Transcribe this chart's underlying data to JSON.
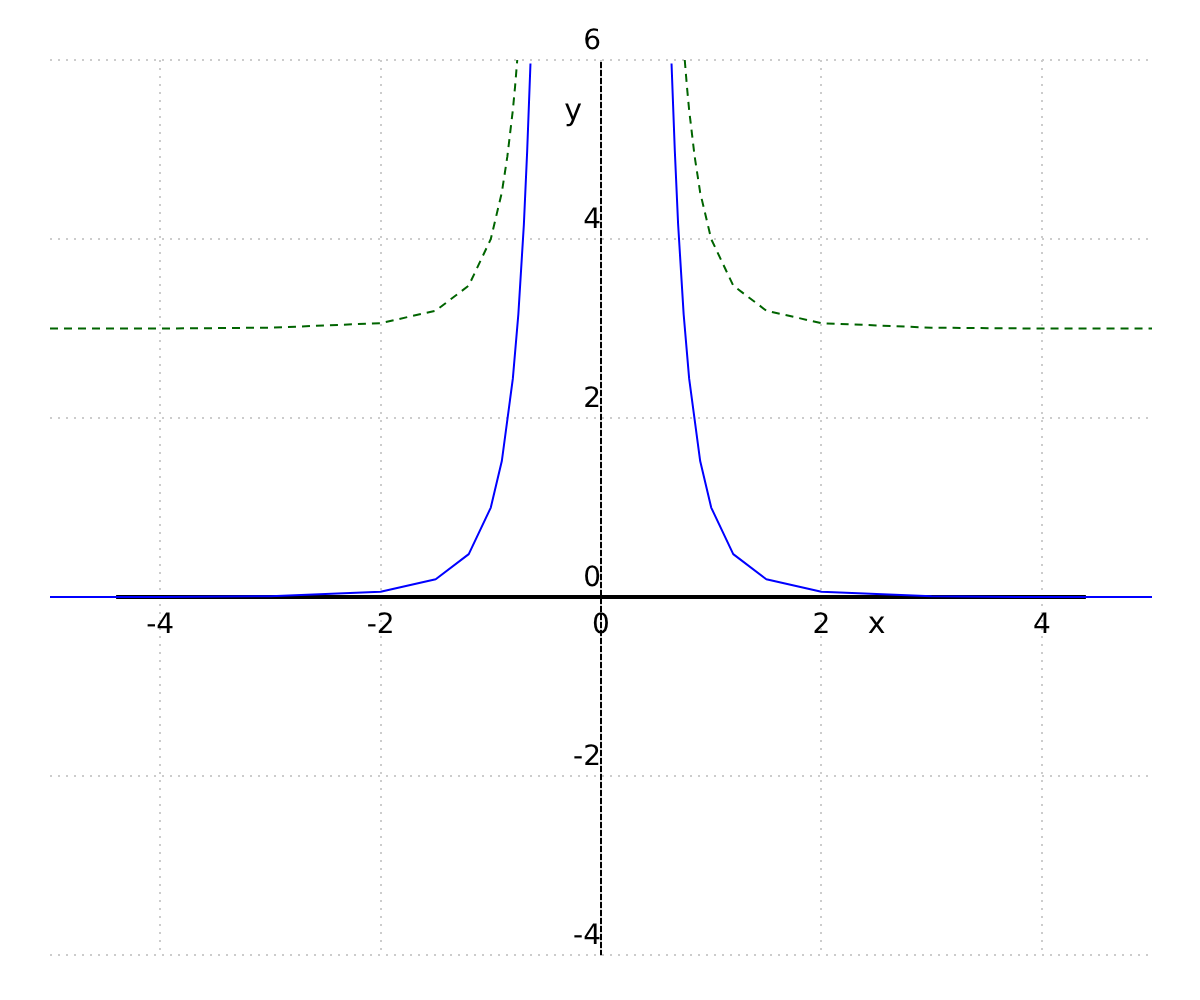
{
  "chart_data": {
    "type": "line",
    "xlabel": "x",
    "ylabel": "y",
    "xlim": [
      -5,
      5
    ],
    "ylim": [
      -4,
      6
    ],
    "xticks": [
      -4,
      -2,
      0,
      2,
      4
    ],
    "yticks": [
      -4,
      -2,
      0,
      2,
      4,
      6
    ],
    "grid": true,
    "legend": false,
    "series": [
      {
        "color": "#0000ff",
        "line_style": "solid",
        "x": [
          -5,
          -4,
          -3,
          -2,
          -1.5,
          -1.2,
          -1,
          -0.9,
          -0.8,
          -0.75,
          -0.7,
          -0.67,
          -0.64,
          0,
          0.64,
          0.67,
          0.7,
          0.75,
          0.8,
          0.9,
          1,
          1.2,
          1.5,
          2,
          3,
          4,
          5
        ],
        "values": [
          0,
          0,
          0.01,
          0.06,
          0.2,
          0.48,
          1,
          1.52,
          2.44,
          3.16,
          4.16,
          4.98,
          5.96,
          null,
          5.96,
          4.98,
          4.16,
          3.16,
          2.44,
          1.52,
          1,
          0.48,
          0.2,
          0.06,
          0.01,
          0,
          0
        ]
      },
      {
        "color": "#006400",
        "line_style": "dashed",
        "x": [
          -5,
          -4,
          -3,
          -2,
          -1.5,
          -1.2,
          -1,
          -0.9,
          -0.85,
          -0.8,
          -0.78,
          -0.76,
          0,
          0.76,
          0.78,
          0.8,
          0.85,
          0.9,
          1,
          1.2,
          1.5,
          2,
          3,
          4,
          5
        ],
        "values": [
          3,
          3,
          3.01,
          3.06,
          3.2,
          3.48,
          4,
          4.52,
          4.92,
          5.44,
          5.7,
          6,
          null,
          6,
          5.7,
          5.44,
          4.92,
          4.52,
          4,
          3.48,
          3.2,
          3.06,
          3.01,
          3,
          3
        ]
      },
      {
        "color": "#000000",
        "line_style": "solid",
        "x": [
          -4.4,
          4.4
        ],
        "values": [
          0,
          0
        ]
      }
    ]
  }
}
